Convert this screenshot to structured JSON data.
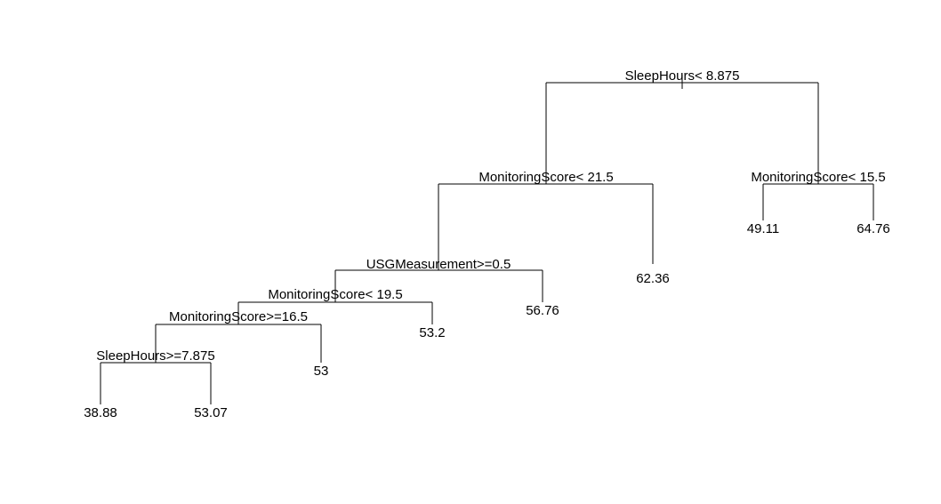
{
  "tree": {
    "nodes": [
      {
        "id": "n1",
        "split": "SleepHours< 8.875"
      },
      {
        "id": "n2",
        "split": "MonitoringScore< 21.5"
      },
      {
        "id": "n3",
        "split": "MonitoringScore< 15.5"
      },
      {
        "id": "n4",
        "split": "USGMeasurement>=0.5"
      },
      {
        "id": "n5",
        "split": "MonitoringScore< 19.5"
      },
      {
        "id": "n6",
        "split": "MonitoringScore>=16.5"
      },
      {
        "id": "n7",
        "split": "SleepHours>=7.875"
      }
    ],
    "leaves": [
      {
        "id": "l1",
        "value": "38.88"
      },
      {
        "id": "l2",
        "value": "53.07"
      },
      {
        "id": "l3",
        "value": "53"
      },
      {
        "id": "l4",
        "value": "53.2"
      },
      {
        "id": "l5",
        "value": "56.76"
      },
      {
        "id": "l6",
        "value": "62.36"
      },
      {
        "id": "l7",
        "value": "49.11"
      },
      {
        "id": "l8",
        "value": "64.76"
      }
    ]
  }
}
